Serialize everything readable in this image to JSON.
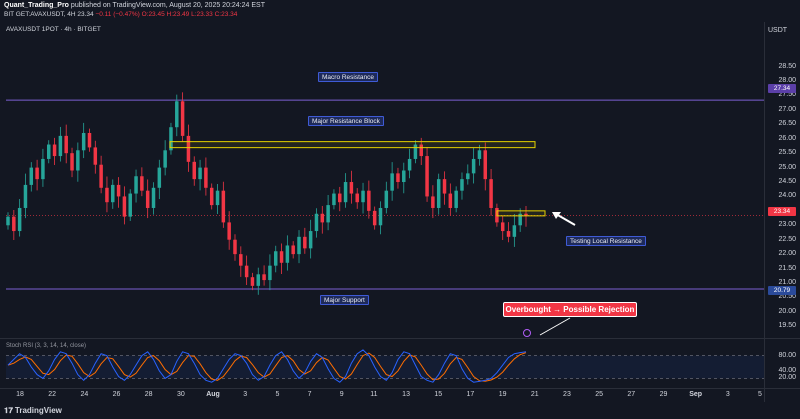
{
  "header": {
    "author": "Quant_Trading_Pro",
    "published_text": "published on TradingView.com, August 20, 2025 20:24:24 EST",
    "ticker_line_prefix": "BIT GET:AVAXUSDT, 4H",
    "ticker_values": "23.34",
    "change_text": "−0.11 (−0.47%)",
    "ohlc_rest": "O:23.45 H:23.49 L:23.33 C:23.34"
  },
  "symbol_title": "AVAXUSDT 1POT · 4h · BITGET",
  "price_scale": {
    "currency": "USDT",
    "labels": [
      "28.50",
      "28.00",
      "27.50",
      "27.00",
      "26.50",
      "26.00",
      "25.50",
      "25.00",
      "24.50",
      "24.00",
      "23.50",
      "23.00",
      "22.50",
      "22.00",
      "21.50",
      "21.00",
      "20.50",
      "20.00",
      "19.50"
    ],
    "tag_macro": "27.34",
    "tag_current": "23.34",
    "tag_support": "20.79"
  },
  "rsi": {
    "title": "Stoch RSI (3, 3, 14, 14, close)",
    "labels": [
      "80.00",
      "40.00",
      "20.00"
    ]
  },
  "annotations": {
    "macro_resistance": "Macro Resistance",
    "major_resistance_block": "Major Resistance Block",
    "testing_local_resistance": "Testing Local Resistance",
    "major_support": "Major Support",
    "callout": "Overbought → Possible Rejection"
  },
  "time_axis": {
    "labels": [
      "18",
      "22",
      "24",
      "26",
      "28",
      "30",
      "Aug",
      "3",
      "5",
      "7",
      "9",
      "11",
      "13",
      "15",
      "17",
      "19",
      "21",
      "23",
      "25",
      "27",
      "29",
      "Sep",
      "3",
      "5"
    ]
  },
  "footer": {
    "logo_text": "TradingView",
    "logo_mark": "𝟏𝟕"
  },
  "colors": {
    "background": "#131722",
    "up": "#26a69a",
    "down": "#f23645",
    "macro_line": "#7b5fd1",
    "support_line": "#7b5fd1",
    "resistance_box": "#e6d200",
    "rsi_k": "#2962ff",
    "rsi_d": "#ff6d00"
  },
  "chart_data": {
    "type": "candlestick",
    "price_range": [
      19.3,
      28.8
    ],
    "levels": {
      "macro_resistance": 27.34,
      "current": 23.34,
      "major_support": 20.79
    },
    "resistance_block": [
      25.75,
      25.9
    ],
    "local_resistance_box": [
      23.35,
      23.5
    ],
    "closes": [
      23.3,
      22.8,
      23.6,
      24.4,
      25.0,
      24.6,
      25.3,
      25.8,
      25.4,
      26.1,
      25.5,
      24.9,
      25.6,
      26.2,
      25.7,
      25.1,
      24.3,
      23.8,
      24.4,
      24.0,
      23.3,
      24.1,
      24.7,
      24.2,
      23.6,
      24.3,
      25.0,
      25.6,
      26.4,
      27.3,
      26.1,
      25.2,
      24.6,
      25.0,
      24.3,
      23.7,
      24.2,
      23.1,
      22.5,
      22.0,
      21.6,
      21.2,
      20.9,
      21.3,
      21.1,
      21.6,
      22.1,
      21.7,
      22.3,
      22.0,
      22.6,
      22.2,
      22.8,
      23.4,
      23.1,
      23.7,
      24.1,
      23.8,
      24.5,
      24.1,
      23.8,
      24.2,
      23.5,
      23.0,
      23.6,
      24.2,
      24.8,
      24.5,
      24.9,
      25.3,
      25.8,
      25.4,
      24.0,
      23.6,
      24.6,
      24.1,
      23.6,
      24.2,
      24.6,
      24.8,
      25.3,
      25.6,
      24.6,
      23.6,
      23.1,
      22.8,
      22.6,
      23.0,
      23.4,
      23.34
    ],
    "stoch_rsi_k": [
      55,
      70,
      85,
      75,
      50,
      30,
      20,
      40,
      70,
      90,
      85,
      60,
      30,
      15,
      30,
      60,
      85,
      80,
      50,
      25,
      15,
      30,
      55,
      80,
      90,
      70,
      40,
      20,
      30,
      65,
      90,
      85,
      60,
      30,
      15,
      10,
      20,
      45,
      70,
      85,
      80,
      60,
      30,
      15,
      25,
      55,
      80,
      90,
      70,
      40,
      20,
      35,
      65,
      85,
      75,
      45,
      20,
      10,
      25,
      60,
      85,
      95,
      80,
      50,
      25,
      15,
      35,
      70,
      90,
      85,
      55,
      25,
      15,
      10,
      30,
      60,
      85,
      80,
      45,
      20,
      10,
      12,
      15,
      20,
      35,
      55,
      75,
      85,
      88,
      90
    ]
  }
}
